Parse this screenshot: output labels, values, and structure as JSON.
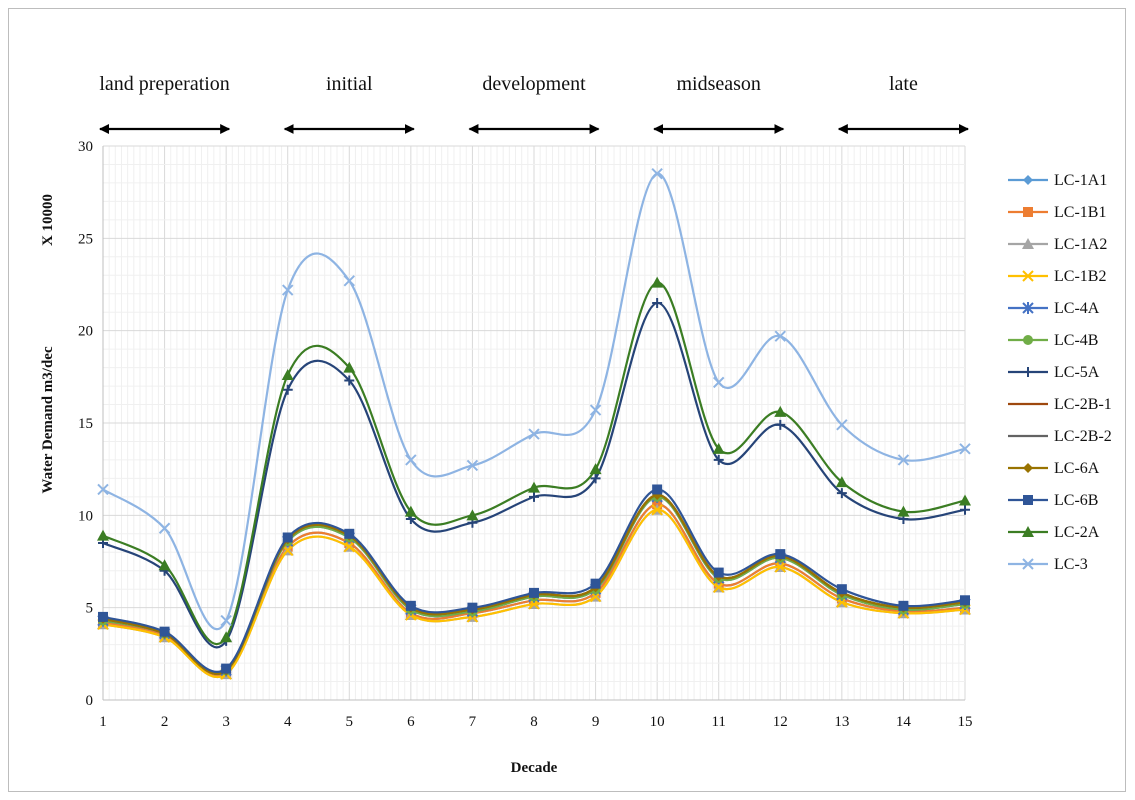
{
  "chart_data": {
    "type": "line",
    "smoothed": true,
    "title": "",
    "xlabel": "Decade",
    "ylabel": "Water Demand m3/dec",
    "y_multiplier_label": "X 10000",
    "x": [
      1,
      2,
      3,
      4,
      5,
      6,
      7,
      8,
      9,
      10,
      11,
      12,
      13,
      14,
      15
    ],
    "xlim": [
      1,
      15
    ],
    "ylim": [
      0,
      30
    ],
    "y_ticks": [
      0,
      5,
      10,
      15,
      20,
      25,
      30
    ],
    "grid": true,
    "legend_position": "right",
    "stages": [
      {
        "label": "land preperation",
        "from": 1,
        "to": 3
      },
      {
        "label": "initial",
        "from": 4,
        "to": 6
      },
      {
        "label": "development",
        "from": 7,
        "to": 9
      },
      {
        "label": "midseason",
        "from": 10,
        "to": 12
      },
      {
        "label": "late",
        "from": 13,
        "to": 15
      }
    ],
    "series": [
      {
        "name": "LC-1A1",
        "color": "#5b9bd5",
        "marker": "diamond",
        "values": [
          4.2,
          3.5,
          1.5,
          8.3,
          8.5,
          4.7,
          4.7,
          5.4,
          5.8,
          10.6,
          6.3,
          7.4,
          5.5,
          4.8,
          5.0
        ]
      },
      {
        "name": "LC-1B1",
        "color": "#ed7d31",
        "marker": "square",
        "values": [
          4.2,
          3.5,
          1.5,
          8.3,
          8.5,
          4.7,
          4.7,
          5.4,
          5.8,
          10.6,
          6.3,
          7.4,
          5.5,
          4.8,
          5.0
        ]
      },
      {
        "name": "LC-1A2",
        "color": "#a5a5a5",
        "marker": "triangle",
        "values": [
          4.1,
          3.4,
          1.4,
          8.1,
          8.3,
          4.6,
          4.5,
          5.2,
          5.6,
          10.3,
          6.1,
          7.2,
          5.3,
          4.7,
          4.9
        ]
      },
      {
        "name": "LC-1B2",
        "color": "#ffc000",
        "marker": "x",
        "values": [
          4.1,
          3.4,
          1.4,
          8.1,
          8.3,
          4.6,
          4.5,
          5.2,
          5.6,
          10.3,
          6.1,
          7.2,
          5.3,
          4.7,
          4.9
        ]
      },
      {
        "name": "LC-4A",
        "color": "#4472c4",
        "marker": "star",
        "values": [
          4.3,
          3.6,
          1.6,
          8.6,
          8.8,
          4.9,
          4.8,
          5.6,
          6.0,
          11.0,
          6.6,
          7.7,
          5.7,
          4.9,
          5.2
        ]
      },
      {
        "name": "LC-4B",
        "color": "#70ad47",
        "marker": "circle",
        "values": [
          4.3,
          3.6,
          1.6,
          8.6,
          8.8,
          4.9,
          4.8,
          5.6,
          6.0,
          11.0,
          6.6,
          7.7,
          5.7,
          4.9,
          5.2
        ]
      },
      {
        "name": "LC-5A",
        "color": "#264478",
        "marker": "plus",
        "values": [
          8.5,
          7.0,
          3.2,
          16.8,
          17.3,
          9.8,
          9.6,
          11.0,
          12.0,
          21.5,
          13.0,
          14.9,
          11.2,
          9.8,
          10.3
        ]
      },
      {
        "name": "LC-2B-1",
        "color": "#9e480e",
        "marker": "none",
        "values": [
          4.4,
          3.6,
          1.6,
          8.7,
          8.9,
          5.0,
          4.9,
          5.7,
          6.1,
          11.1,
          6.7,
          7.8,
          5.8,
          5.0,
          5.3
        ]
      },
      {
        "name": "LC-2B-2",
        "color": "#636363",
        "marker": "none",
        "values": [
          4.4,
          3.6,
          1.6,
          8.7,
          8.9,
          5.0,
          4.9,
          5.7,
          6.1,
          11.1,
          6.7,
          7.8,
          5.8,
          5.0,
          5.3
        ]
      },
      {
        "name": "LC-6A",
        "color": "#997300",
        "marker": "diamond",
        "values": [
          4.4,
          3.6,
          1.6,
          8.7,
          8.9,
          5.0,
          4.9,
          5.7,
          6.1,
          11.1,
          6.7,
          7.8,
          5.8,
          5.0,
          5.3
        ]
      },
      {
        "name": "LC-6B",
        "color": "#2f5597",
        "marker": "square",
        "values": [
          4.5,
          3.7,
          1.7,
          8.8,
          9.0,
          5.1,
          5.0,
          5.8,
          6.3,
          11.4,
          6.9,
          7.9,
          6.0,
          5.1,
          5.4
        ]
      },
      {
        "name": "LC-2A",
        "color": "#3b7d23",
        "marker": "triangle",
        "values": [
          8.9,
          7.3,
          3.4,
          17.6,
          18.0,
          10.2,
          10.0,
          11.5,
          12.5,
          22.6,
          13.6,
          15.6,
          11.8,
          10.2,
          10.8
        ]
      },
      {
        "name": "LC-3",
        "color": "#8eb4e3",
        "marker": "x",
        "values": [
          11.4,
          9.3,
          4.3,
          22.2,
          22.7,
          13.0,
          12.7,
          14.4,
          15.7,
          28.5,
          17.2,
          19.7,
          14.9,
          13.0,
          13.6
        ]
      }
    ]
  }
}
